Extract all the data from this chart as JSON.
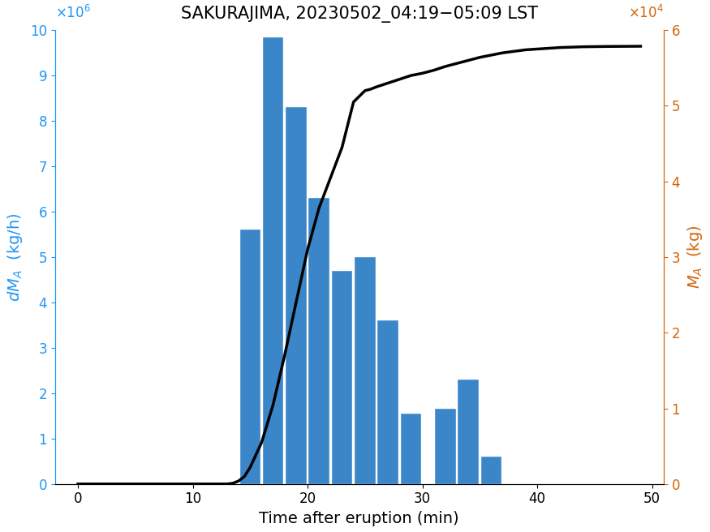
{
  "title": "SAKURAJIMA, 20230502_04:19−05:09 LST",
  "xlabel": "Time after eruption (min)",
  "bar_centers": [
    15,
    17,
    19,
    21,
    23,
    25,
    27,
    29,
    32,
    34,
    36,
    40
  ],
  "bar_heights": [
    5600000.0,
    9850000.0,
    8300000.0,
    6300000.0,
    4700000.0,
    5000000.0,
    3600000.0,
    1550000.0,
    1650000.0,
    2300000.0,
    600000.0,
    0.0
  ],
  "bar_width": 1.8,
  "bar_color": "#3A86C8",
  "line_x": [
    0,
    13,
    13.5,
    14.0,
    14.5,
    15.0,
    16.0,
    17.0,
    18.0,
    19.0,
    20.0,
    21.0,
    22.0,
    23.0,
    24.0,
    25.0,
    25.5,
    26.0,
    27.0,
    28.0,
    29.0,
    30.0,
    31.0,
    32.0,
    33.0,
    34.0,
    35.0,
    36.0,
    37.0,
    38.0,
    39.0,
    40.0,
    41.0,
    42.0,
    43.0,
    44.0,
    45.0,
    46.0,
    47.0,
    48.0,
    49.0
  ],
  "line_y": [
    0,
    0,
    100,
    400,
    1000,
    2200,
    5500,
    10500,
    17000,
    24000,
    31000,
    36500,
    40500,
    44500,
    50500,
    52000,
    52200,
    52500,
    53000,
    53500,
    54000,
    54300,
    54700,
    55200,
    55600,
    56000,
    56400,
    56700,
    57000,
    57200,
    57400,
    57500,
    57600,
    57700,
    57750,
    57800,
    57820,
    57840,
    57850,
    57860,
    57870
  ],
  "line_color": "#000000",
  "xlim": [
    -2,
    51
  ],
  "ylim_left": [
    0,
    10000000.0
  ],
  "ylim_right": [
    0,
    60000.0
  ],
  "xticks": [
    0,
    10,
    20,
    30,
    40,
    50
  ],
  "yticks_left": [
    0,
    1000000.0,
    2000000.0,
    3000000.0,
    4000000.0,
    5000000.0,
    6000000.0,
    7000000.0,
    8000000.0,
    9000000.0,
    10000000.0
  ],
  "yticks_right": [
    0,
    10000.0,
    20000.0,
    30000.0,
    40000.0,
    50000.0,
    60000.0
  ],
  "left_axis_color": "#2196F3",
  "right_axis_color": "#D4650A",
  "line_width": 2.5,
  "figsize": [
    8.75,
    6.56
  ],
  "dpi": 100
}
